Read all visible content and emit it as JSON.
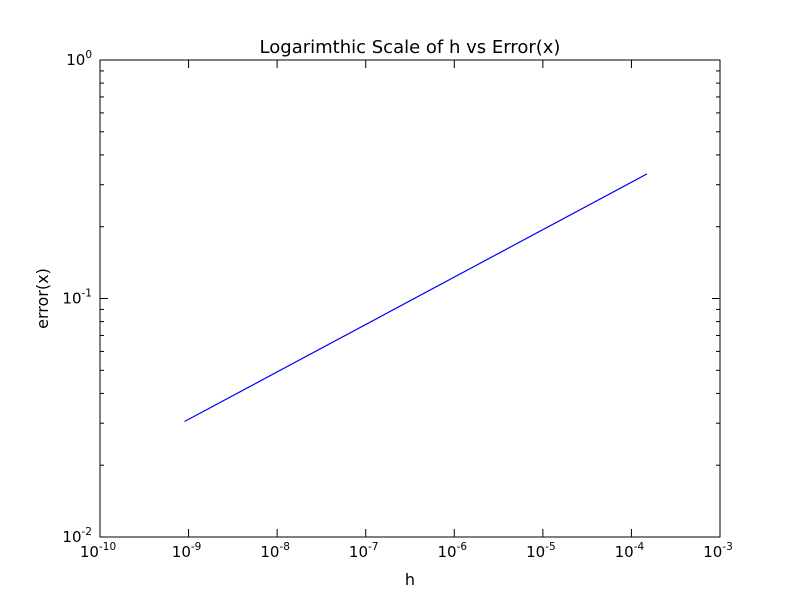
{
  "chart_data": {
    "type": "line",
    "title": "Logarimthic Scale of h vs Error(x)",
    "xlabel": "h",
    "ylabel": "error(x)",
    "xscale": "log",
    "yscale": "log",
    "xlim": [
      1e-10,
      0.001
    ],
    "ylim": [
      0.01,
      1
    ],
    "grid": false,
    "line_color": "#0000ff",
    "x_ticks": [
      {
        "base": "10",
        "exp": "-10",
        "value": 1e-10
      },
      {
        "base": "10",
        "exp": "-9",
        "value": 1e-09
      },
      {
        "base": "10",
        "exp": "-8",
        "value": 1e-08
      },
      {
        "base": "10",
        "exp": "-7",
        "value": 1e-07
      },
      {
        "base": "10",
        "exp": "-6",
        "value": 1e-06
      },
      {
        "base": "10",
        "exp": "-5",
        "value": 1e-05
      },
      {
        "base": "10",
        "exp": "-4",
        "value": 0.0001
      },
      {
        "base": "10",
        "exp": "-3",
        "value": 0.001
      }
    ],
    "y_ticks": [
      {
        "base": "10",
        "exp": "-2",
        "value": 0.01
      },
      {
        "base": "10",
        "exp": "-1",
        "value": 0.1
      },
      {
        "base": "10",
        "exp": "0",
        "value": 1
      }
    ],
    "series": [
      {
        "x": [
          9e-10,
          0.00015
        ],
        "y": [
          0.0305,
          0.333
        ]
      }
    ]
  }
}
